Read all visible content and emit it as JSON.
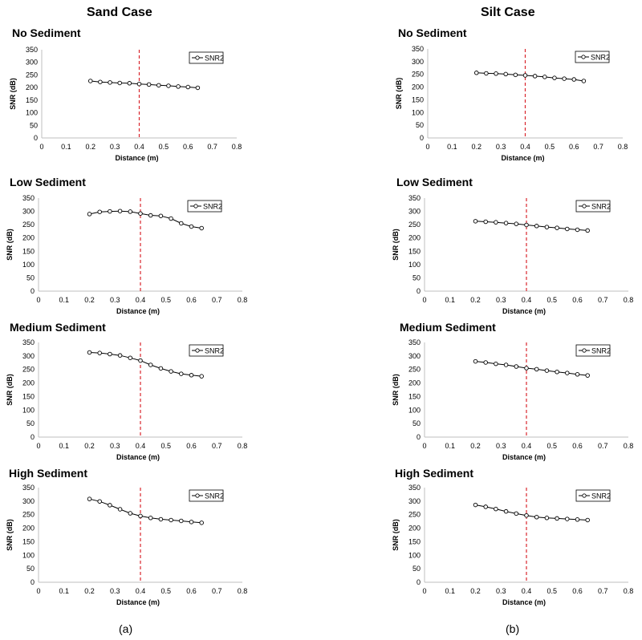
{
  "figure": {
    "columns": [
      "Sand Case",
      "Silt Case"
    ],
    "sublabels": [
      "(a)",
      "(b)"
    ]
  },
  "chart_data": [
    {
      "type": "line",
      "case": "Sand Case",
      "title": "No Sediment",
      "xlabel": "Distance (m)",
      "ylabel": "SNR (dB)",
      "xlim": [
        0,
        0.8
      ],
      "ylim": [
        0,
        350
      ],
      "xticks": [
        "0",
        "0.1",
        "0.2",
        "0.3",
        "0.4",
        "0.5",
        "0.6",
        "0.7",
        "0.8"
      ],
      "yticks": [
        "0",
        "50",
        "100",
        "150",
        "200",
        "250",
        "300",
        "350"
      ],
      "legend": "top-right",
      "grid": false,
      "vline_x": 0.4,
      "vline_color": "#d9262c",
      "series": [
        {
          "name": "SNR2",
          "x": [
            0.2,
            0.24,
            0.28,
            0.32,
            0.36,
            0.4,
            0.44,
            0.48,
            0.52,
            0.56,
            0.6,
            0.64
          ],
          "y": [
            226,
            222,
            220,
            218,
            217,
            214,
            212,
            209,
            207,
            204,
            202,
            199
          ]
        }
      ]
    },
    {
      "type": "line",
      "case": "Silt Case",
      "title": "No Sediment",
      "xlabel": "Distance (m)",
      "ylabel": "SNR (dB)",
      "xlim": [
        0,
        0.8
      ],
      "ylim": [
        0,
        350
      ],
      "xticks": [
        "0",
        "0.1",
        "0.2",
        "0.3",
        "0.4",
        "0.5",
        "0.6",
        "0.7",
        "0.8"
      ],
      "yticks": [
        "0",
        "50",
        "100",
        "150",
        "200",
        "250",
        "300",
        "350"
      ],
      "legend": "top-right",
      "grid": false,
      "vline_x": 0.4,
      "vline_color": "#d9262c",
      "series": [
        {
          "name": "SNR2",
          "x": [
            0.2,
            0.24,
            0.28,
            0.32,
            0.36,
            0.4,
            0.44,
            0.48,
            0.52,
            0.56,
            0.6,
            0.64
          ],
          "y": [
            256,
            254,
            253,
            251,
            248,
            246,
            243,
            240,
            236,
            233,
            230,
            224
          ]
        }
      ]
    },
    {
      "type": "line",
      "case": "Sand Case",
      "title": "Low Sediment",
      "xlabel": "Distance (m)",
      "ylabel": "SNR (dB)",
      "xlim": [
        0,
        0.8
      ],
      "ylim": [
        0,
        350
      ],
      "xticks": [
        "0",
        "0.1",
        "0.2",
        "0.3",
        "0.4",
        "0.5",
        "0.6",
        "0.7",
        "0.8"
      ],
      "yticks": [
        "0",
        "50",
        "100",
        "150",
        "200",
        "250",
        "300",
        "350"
      ],
      "legend": "top-right",
      "grid": false,
      "vline_x": 0.4,
      "vline_color": "#d9262c",
      "series": [
        {
          "name": "SNR2",
          "x": [
            0.2,
            0.24,
            0.28,
            0.32,
            0.36,
            0.4,
            0.44,
            0.48,
            0.52,
            0.56,
            0.6,
            0.64
          ],
          "y": [
            290,
            298,
            300,
            301,
            299,
            292,
            285,
            283,
            273,
            255,
            243,
            237
          ]
        }
      ]
    },
    {
      "type": "line",
      "case": "Silt Case",
      "title": "Low Sediment",
      "xlabel": "Distance (m)",
      "ylabel": "SNR (dB)",
      "xlim": [
        0,
        0.8
      ],
      "ylim": [
        0,
        350
      ],
      "xticks": [
        "0",
        "0.1",
        "0.2",
        "0.3",
        "0.4",
        "0.5",
        "0.6",
        "0.7",
        "0.8"
      ],
      "yticks": [
        "0",
        "50",
        "100",
        "150",
        "200",
        "250",
        "300",
        "350"
      ],
      "legend": "top-right",
      "grid": false,
      "vline_x": 0.4,
      "vline_color": "#d9262c",
      "series": [
        {
          "name": "SNR2",
          "x": [
            0.2,
            0.24,
            0.28,
            0.32,
            0.36,
            0.4,
            0.44,
            0.48,
            0.52,
            0.56,
            0.6,
            0.64
          ],
          "y": [
            263,
            261,
            259,
            256,
            253,
            249,
            245,
            241,
            238,
            234,
            231,
            228
          ]
        }
      ]
    },
    {
      "type": "line",
      "case": "Sand Case",
      "title": "Medium Sediment",
      "xlabel": "Distance (m)",
      "ylabel": "SNR (dB)",
      "xlim": [
        0,
        0.8
      ],
      "ylim": [
        0,
        350
      ],
      "xticks": [
        "0",
        "0.1",
        "0.2",
        "0.3",
        "0.4",
        "0.5",
        "0.6",
        "0.7",
        "0.8"
      ],
      "yticks": [
        "0",
        "50",
        "100",
        "150",
        "200",
        "250",
        "300",
        "350"
      ],
      "legend": "top-right",
      "grid": false,
      "vline_x": 0.4,
      "vline_color": "#d9262c",
      "series": [
        {
          "name": "SNR2",
          "x": [
            0.2,
            0.24,
            0.28,
            0.32,
            0.36,
            0.4,
            0.44,
            0.48,
            0.52,
            0.56,
            0.6,
            0.64
          ],
          "y": [
            313,
            311,
            307,
            302,
            293,
            283,
            267,
            254,
            243,
            234,
            229,
            225
          ]
        }
      ]
    },
    {
      "type": "line",
      "case": "Silt Case",
      "title": "Medium Sediment",
      "xlabel": "Distance (m)",
      "ylabel": "SNR (dB)",
      "xlim": [
        0,
        0.8
      ],
      "ylim": [
        0,
        350
      ],
      "xticks": [
        "0",
        "0.1",
        "0.2",
        "0.3",
        "0.4",
        "0.5",
        "0.6",
        "0.7",
        "0.8"
      ],
      "yticks": [
        "0",
        "50",
        "100",
        "150",
        "200",
        "250",
        "300",
        "350"
      ],
      "legend": "top-right",
      "grid": false,
      "vline_x": 0.4,
      "vline_color": "#d9262c",
      "series": [
        {
          "name": "SNR2",
          "x": [
            0.2,
            0.24,
            0.28,
            0.32,
            0.36,
            0.4,
            0.44,
            0.48,
            0.52,
            0.56,
            0.6,
            0.64
          ],
          "y": [
            280,
            276,
            271,
            267,
            261,
            255,
            251,
            246,
            241,
            237,
            232,
            228
          ]
        }
      ]
    },
    {
      "type": "line",
      "case": "Sand Case",
      "title": "High Sediment",
      "xlabel": "Distance (m)",
      "ylabel": "SNR (dB)",
      "xlim": [
        0,
        0.8
      ],
      "ylim": [
        0,
        350
      ],
      "xticks": [
        "0",
        "0.1",
        "0.2",
        "0.3",
        "0.4",
        "0.5",
        "0.6",
        "0.7",
        "0.8"
      ],
      "yticks": [
        "0",
        "50",
        "100",
        "150",
        "200",
        "250",
        "300",
        "350"
      ],
      "legend": "top-right",
      "grid": false,
      "vline_x": 0.4,
      "vline_color": "#d9262c",
      "series": [
        {
          "name": "SNR2",
          "x": [
            0.2,
            0.24,
            0.28,
            0.32,
            0.36,
            0.4,
            0.44,
            0.48,
            0.52,
            0.56,
            0.6,
            0.64
          ],
          "y": [
            308,
            299,
            285,
            270,
            255,
            245,
            238,
            233,
            230,
            227,
            223,
            220
          ]
        }
      ]
    },
    {
      "type": "line",
      "case": "Silt Case",
      "title": "High Sediment",
      "xlabel": "Distance (m)",
      "ylabel": "SNR (dB)",
      "xlim": [
        0,
        0.8
      ],
      "ylim": [
        0,
        350
      ],
      "xticks": [
        "0",
        "0.1",
        "0.2",
        "0.3",
        "0.4",
        "0.5",
        "0.6",
        "0.7",
        "0.8"
      ],
      "yticks": [
        "0",
        "50",
        "100",
        "150",
        "200",
        "250",
        "300",
        "350"
      ],
      "legend": "top-right",
      "grid": false,
      "vline_x": 0.4,
      "vline_color": "#d9262c",
      "series": [
        {
          "name": "SNR2",
          "x": [
            0.2,
            0.24,
            0.28,
            0.32,
            0.36,
            0.4,
            0.44,
            0.48,
            0.52,
            0.56,
            0.6,
            0.64
          ],
          "y": [
            286,
            279,
            271,
            262,
            254,
            247,
            241,
            238,
            236,
            234,
            232,
            230
          ]
        }
      ]
    }
  ]
}
